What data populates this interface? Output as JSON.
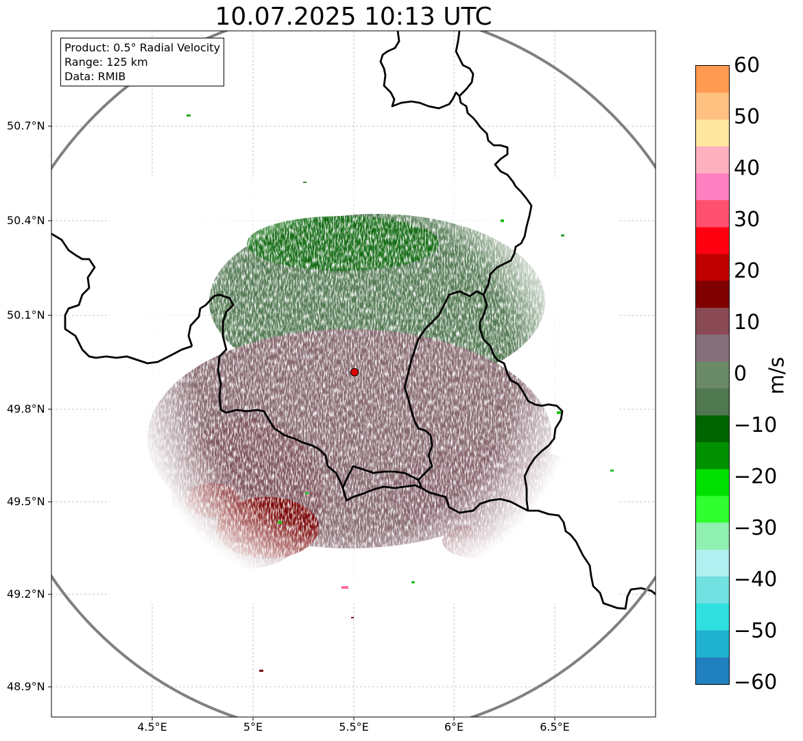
{
  "title": "10.07.2025 10:13 UTC",
  "info_box": {
    "product": "Product: 0.5° Radial Velocity",
    "range": "Range: 125 km",
    "data": "Data: RMIB"
  },
  "lat_labels": [
    "50.7°N",
    "50.4°N",
    "50.1°N",
    "49.8°N",
    "49.5°N",
    "49.2°N",
    "48.9°N"
  ],
  "lon_labels": [
    "4.5°E",
    "5°E",
    "5.5°E",
    "6°E",
    "6.5°E"
  ],
  "colorbar": {
    "unit": "m/s",
    "ticks": [
      "60",
      "50",
      "40",
      "30",
      "20",
      "10",
      "0",
      "−10",
      "−20",
      "−30",
      "−40",
      "−50",
      "−60"
    ],
    "range": [
      -60,
      60
    ],
    "stops": [
      "#ff9a50",
      "#ffc080",
      "#ffe7a0",
      "#ffb0c0",
      "#ff80c0",
      "#ff5070",
      "#ff0010",
      "#c00000",
      "#800000",
      "#8a4a55",
      "#85707a",
      "#6a8a68",
      "#507850",
      "#006400",
      "#009000",
      "#00e000",
      "#30ff30",
      "#90f0b0",
      "#b0f0f0",
      "#70e0e0",
      "#30e0e0",
      "#20b0d0",
      "#2080c0"
    ]
  },
  "colors": {
    "approaching_far": "#527a52",
    "receding_near": "#856872",
    "receding_strong": "#7a0000",
    "range_ring": "#808080",
    "radar_site": "#e00000"
  }
}
